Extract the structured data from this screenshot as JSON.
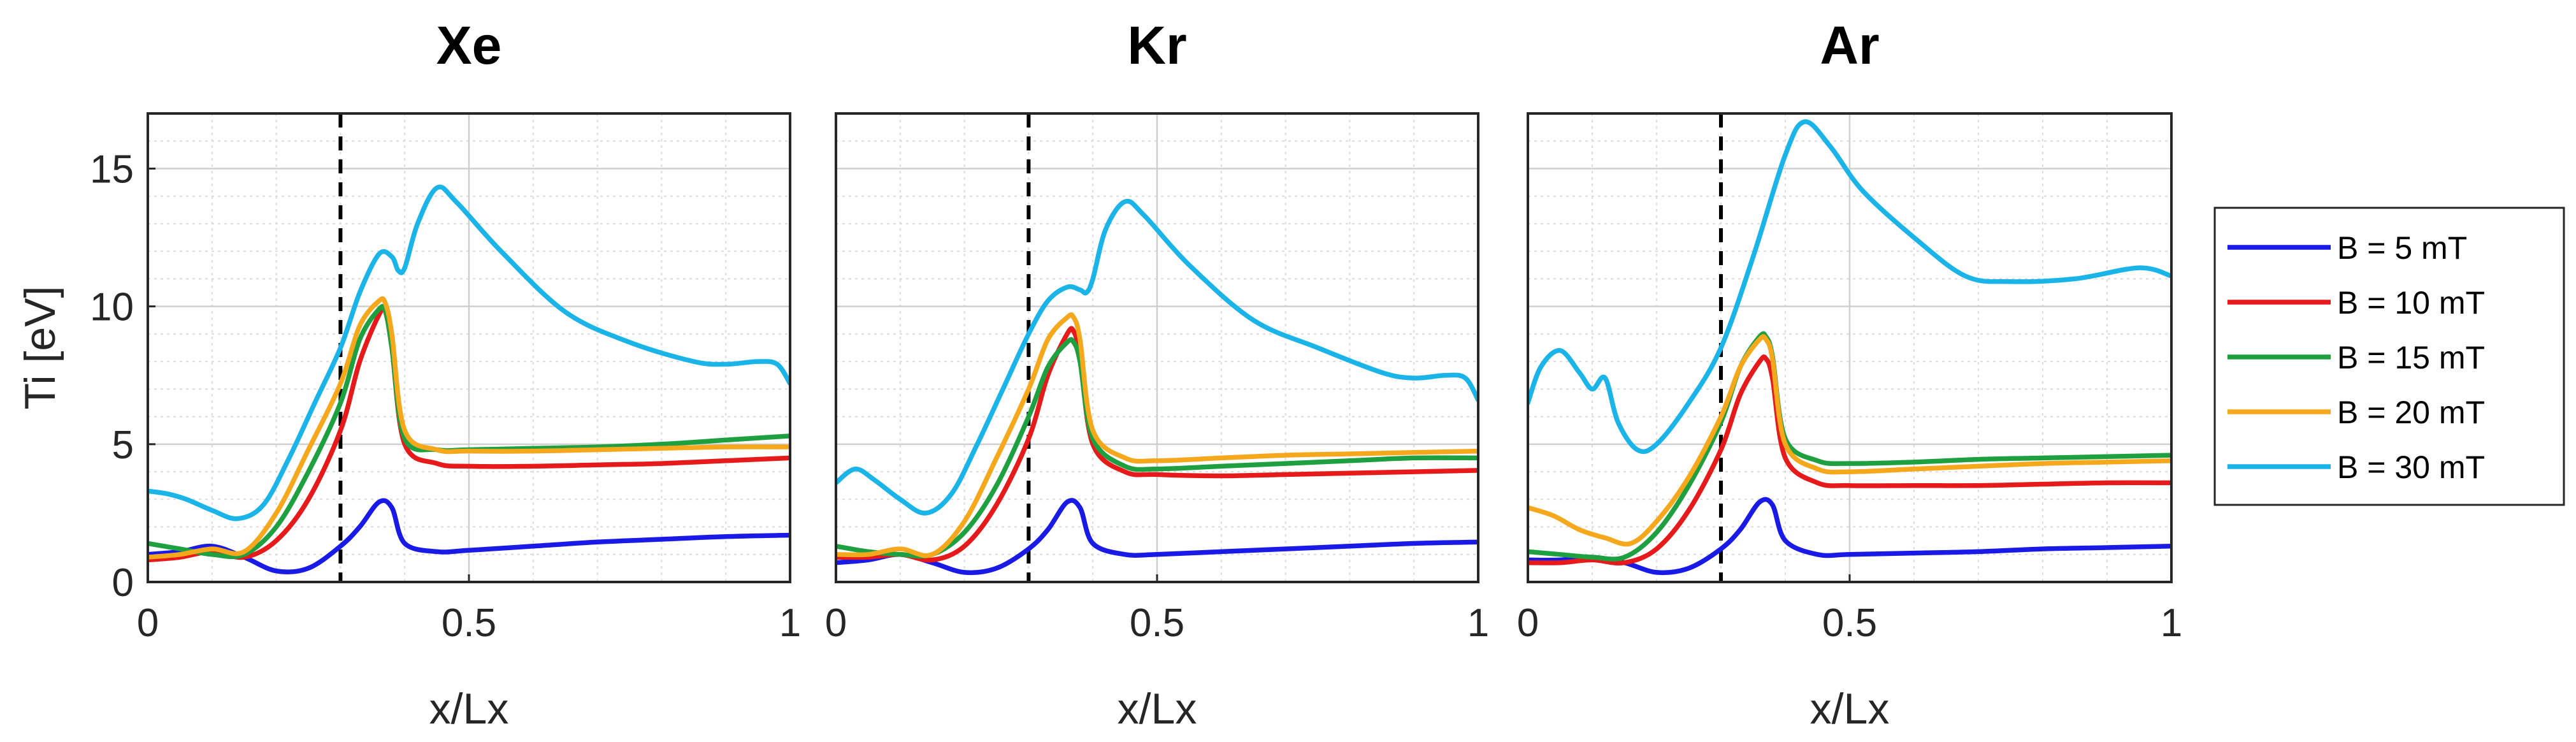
{
  "chart_data": [
    {
      "type": "line",
      "title": "Xe",
      "xlabel": "x/Lx",
      "ylabel": "Ti [eV]",
      "xlim": [
        0,
        1
      ],
      "ylim": [
        0,
        17
      ],
      "xticks": [
        0,
        0.5,
        1
      ],
      "xtick_labels": [
        "0",
        "0.5",
        "1"
      ],
      "yticks": [
        0,
        5,
        10,
        15
      ],
      "ytick_labels": [
        "0",
        "5",
        "10",
        "15"
      ],
      "grid": true,
      "vline_x": 0.3,
      "series": [
        {
          "name": "B = 5 mT",
          "color": "#1a1ae6",
          "x": [
            0,
            0.05,
            0.1,
            0.15,
            0.2,
            0.25,
            0.3,
            0.33,
            0.36,
            0.38,
            0.4,
            0.45,
            0.5,
            0.6,
            0.7,
            0.8,
            0.9,
            1.0
          ],
          "y": [
            1.0,
            1.1,
            1.3,
            0.9,
            0.4,
            0.5,
            1.3,
            2.0,
            2.9,
            2.7,
            1.4,
            1.1,
            1.15,
            1.3,
            1.45,
            1.55,
            1.65,
            1.7
          ]
        },
        {
          "name": "B = 10 mT",
          "color": "#e61a1a",
          "x": [
            0,
            0.05,
            0.1,
            0.15,
            0.2,
            0.25,
            0.3,
            0.33,
            0.36,
            0.37,
            0.38,
            0.4,
            0.45,
            0.5,
            0.6,
            0.7,
            0.8,
            0.9,
            1.0
          ],
          "y": [
            0.8,
            0.9,
            1.1,
            0.9,
            1.5,
            3.0,
            5.5,
            8.0,
            9.7,
            9.8,
            8.5,
            5.0,
            4.3,
            4.2,
            4.2,
            4.25,
            4.3,
            4.4,
            4.5
          ]
        },
        {
          "name": "B = 15 mT",
          "color": "#1ea040",
          "x": [
            0,
            0.05,
            0.1,
            0.15,
            0.2,
            0.25,
            0.3,
            0.33,
            0.36,
            0.37,
            0.38,
            0.4,
            0.45,
            0.5,
            0.6,
            0.7,
            0.8,
            0.9,
            1.0
          ],
          "y": [
            1.4,
            1.2,
            1.0,
            1.0,
            2.0,
            4.0,
            6.5,
            8.8,
            9.9,
            9.8,
            8.5,
            5.2,
            4.8,
            4.8,
            4.85,
            4.9,
            5.0,
            5.15,
            5.3
          ]
        },
        {
          "name": "B = 20 mT",
          "color": "#f5a81c",
          "x": [
            0,
            0.05,
            0.1,
            0.15,
            0.2,
            0.25,
            0.3,
            0.33,
            0.36,
            0.37,
            0.38,
            0.4,
            0.45,
            0.5,
            0.6,
            0.7,
            0.8,
            0.9,
            1.0
          ],
          "y": [
            0.9,
            1.0,
            1.2,
            1.1,
            2.5,
            4.8,
            7.2,
            9.3,
            10.2,
            10.1,
            9.0,
            5.5,
            4.8,
            4.75,
            4.75,
            4.8,
            4.85,
            4.9,
            4.9
          ]
        },
        {
          "name": "B = 30 mT",
          "color": "#1ab4e8",
          "x": [
            0,
            0.03,
            0.06,
            0.1,
            0.14,
            0.18,
            0.22,
            0.26,
            0.3,
            0.33,
            0.36,
            0.38,
            0.39,
            0.4,
            0.42,
            0.45,
            0.48,
            0.55,
            0.65,
            0.75,
            0.85,
            0.9,
            0.95,
            0.98,
            1.0
          ],
          "y": [
            3.3,
            3.2,
            3.0,
            2.6,
            2.3,
            2.8,
            4.5,
            6.5,
            8.5,
            10.5,
            11.9,
            11.8,
            11.3,
            11.4,
            13.0,
            14.3,
            13.8,
            12.0,
            9.8,
            8.7,
            8.0,
            7.9,
            8.0,
            7.9,
            7.2
          ]
        }
      ]
    },
    {
      "type": "line",
      "title": "Kr",
      "xlabel": "x/Lx",
      "xlim": [
        0,
        1
      ],
      "ylim": [
        0,
        17
      ],
      "xticks": [
        0,
        0.5,
        1
      ],
      "xtick_labels": [
        "0",
        "0.5",
        "1"
      ],
      "grid": true,
      "vline_x": 0.3,
      "series": [
        {
          "name": "B = 5 mT",
          "color": "#1a1ae6",
          "x": [
            0,
            0.05,
            0.1,
            0.15,
            0.2,
            0.25,
            0.3,
            0.33,
            0.36,
            0.38,
            0.4,
            0.45,
            0.5,
            0.6,
            0.7,
            0.8,
            0.9,
            1.0
          ],
          "y": [
            0.7,
            0.8,
            1.0,
            0.7,
            0.35,
            0.5,
            1.2,
            1.9,
            2.9,
            2.7,
            1.4,
            1.0,
            1.0,
            1.1,
            1.2,
            1.3,
            1.4,
            1.45
          ]
        },
        {
          "name": "B = 10 mT",
          "color": "#e61a1a",
          "x": [
            0,
            0.05,
            0.1,
            0.15,
            0.2,
            0.25,
            0.3,
            0.33,
            0.36,
            0.37,
            0.38,
            0.4,
            0.45,
            0.5,
            0.6,
            0.7,
            0.8,
            0.9,
            1.0
          ],
          "y": [
            0.9,
            0.9,
            1.0,
            0.8,
            1.3,
            2.8,
            5.2,
            7.5,
            9.0,
            9.1,
            8.2,
            5.0,
            4.0,
            3.9,
            3.85,
            3.9,
            3.95,
            4.0,
            4.05
          ]
        },
        {
          "name": "B = 15 mT",
          "color": "#1ea040",
          "x": [
            0,
            0.05,
            0.1,
            0.15,
            0.2,
            0.25,
            0.3,
            0.33,
            0.36,
            0.37,
            0.38,
            0.4,
            0.45,
            0.5,
            0.6,
            0.7,
            0.8,
            0.9,
            1.0
          ],
          "y": [
            1.3,
            1.1,
            1.0,
            1.0,
            1.8,
            3.5,
            6.0,
            7.8,
            8.7,
            8.7,
            8.0,
            5.2,
            4.2,
            4.1,
            4.2,
            4.3,
            4.4,
            4.5,
            4.5
          ]
        },
        {
          "name": "B = 20 mT",
          "color": "#f5a81c",
          "x": [
            0,
            0.05,
            0.1,
            0.15,
            0.2,
            0.25,
            0.3,
            0.33,
            0.36,
            0.37,
            0.38,
            0.4,
            0.45,
            0.5,
            0.6,
            0.7,
            0.8,
            0.9,
            1.0
          ],
          "y": [
            1.0,
            1.0,
            1.2,
            1.0,
            2.2,
            4.5,
            7.0,
            8.8,
            9.6,
            9.6,
            8.8,
            5.5,
            4.5,
            4.4,
            4.5,
            4.6,
            4.65,
            4.7,
            4.75
          ]
        },
        {
          "name": "B = 30 mT",
          "color": "#1ab4e8",
          "x": [
            0,
            0.03,
            0.06,
            0.1,
            0.14,
            0.18,
            0.22,
            0.26,
            0.3,
            0.33,
            0.36,
            0.38,
            0.39,
            0.4,
            0.42,
            0.45,
            0.48,
            0.55,
            0.65,
            0.75,
            0.85,
            0.9,
            0.95,
            0.98,
            1.0
          ],
          "y": [
            3.6,
            4.1,
            3.7,
            3.0,
            2.5,
            3.2,
            5.0,
            7.0,
            9.0,
            10.2,
            10.7,
            10.6,
            10.5,
            11.0,
            12.8,
            13.8,
            13.3,
            11.5,
            9.5,
            8.5,
            7.6,
            7.4,
            7.5,
            7.4,
            6.6
          ]
        }
      ]
    },
    {
      "type": "line",
      "title": "Ar",
      "xlabel": "x/Lx",
      "xlim": [
        0,
        1
      ],
      "ylim": [
        0,
        17
      ],
      "xticks": [
        0,
        0.5,
        1
      ],
      "xtick_labels": [
        "0",
        "0.5",
        "1"
      ],
      "grid": true,
      "vline_x": 0.3,
      "series": [
        {
          "name": "B = 5 mT",
          "color": "#1a1ae6",
          "x": [
            0,
            0.05,
            0.1,
            0.15,
            0.2,
            0.25,
            0.3,
            0.33,
            0.36,
            0.38,
            0.4,
            0.45,
            0.5,
            0.6,
            0.7,
            0.8,
            0.9,
            1.0
          ],
          "y": [
            0.8,
            0.8,
            0.9,
            0.7,
            0.35,
            0.5,
            1.2,
            1.9,
            2.9,
            2.8,
            1.5,
            1.0,
            1.0,
            1.05,
            1.1,
            1.2,
            1.25,
            1.3
          ]
        },
        {
          "name": "B = 10 mT",
          "color": "#e61a1a",
          "x": [
            0,
            0.05,
            0.1,
            0.15,
            0.2,
            0.25,
            0.3,
            0.33,
            0.36,
            0.37,
            0.38,
            0.4,
            0.45,
            0.5,
            0.6,
            0.7,
            0.8,
            0.9,
            1.0
          ],
          "y": [
            0.7,
            0.7,
            0.8,
            0.7,
            1.2,
            2.6,
            4.8,
            6.8,
            8.0,
            8.1,
            7.4,
            4.5,
            3.6,
            3.5,
            3.5,
            3.5,
            3.55,
            3.6,
            3.6
          ]
        },
        {
          "name": "B = 15 mT",
          "color": "#1ea040",
          "x": [
            0,
            0.05,
            0.1,
            0.15,
            0.2,
            0.25,
            0.3,
            0.33,
            0.36,
            0.37,
            0.38,
            0.4,
            0.45,
            0.5,
            0.6,
            0.7,
            0.8,
            0.9,
            1.0
          ],
          "y": [
            1.1,
            1.0,
            0.9,
            0.9,
            1.8,
            3.5,
            5.8,
            7.8,
            8.9,
            8.9,
            8.2,
            5.2,
            4.4,
            4.3,
            4.35,
            4.45,
            4.5,
            4.55,
            4.6
          ]
        },
        {
          "name": "B = 20 mT",
          "color": "#f5a81c",
          "x": [
            0,
            0.04,
            0.08,
            0.12,
            0.16,
            0.2,
            0.25,
            0.3,
            0.33,
            0.36,
            0.37,
            0.38,
            0.4,
            0.45,
            0.5,
            0.6,
            0.7,
            0.8,
            0.9,
            1.0
          ],
          "y": [
            2.7,
            2.4,
            1.9,
            1.6,
            1.4,
            2.2,
            3.8,
            6.0,
            7.8,
            8.8,
            8.8,
            8.1,
            5.0,
            4.1,
            4.0,
            4.1,
            4.2,
            4.3,
            4.35,
            4.4
          ]
        },
        {
          "name": "B = 30 mT",
          "color": "#1ab4e8",
          "x": [
            0,
            0.02,
            0.05,
            0.08,
            0.1,
            0.12,
            0.14,
            0.17,
            0.2,
            0.25,
            0.3,
            0.35,
            0.4,
            0.43,
            0.47,
            0.52,
            0.6,
            0.68,
            0.75,
            0.85,
            0.95,
            1.0
          ],
          "y": [
            6.5,
            7.8,
            8.4,
            7.6,
            7.0,
            7.4,
            5.8,
            4.8,
            5.0,
            6.5,
            8.5,
            11.8,
            15.5,
            16.7,
            15.8,
            14.2,
            12.5,
            11.1,
            10.9,
            11.0,
            11.4,
            11.1
          ]
        }
      ]
    }
  ],
  "legend": {
    "position": "right",
    "entries": [
      {
        "label": "B = 5 mT",
        "color": "#1a1ae6"
      },
      {
        "label": "B = 10 mT",
        "color": "#e61a1a"
      },
      {
        "label": "B = 15 mT",
        "color": "#1ea040"
      },
      {
        "label": "B = 20 mT",
        "color": "#f5a81c"
      },
      {
        "label": "B = 30 mT",
        "color": "#1ab4e8"
      }
    ]
  }
}
